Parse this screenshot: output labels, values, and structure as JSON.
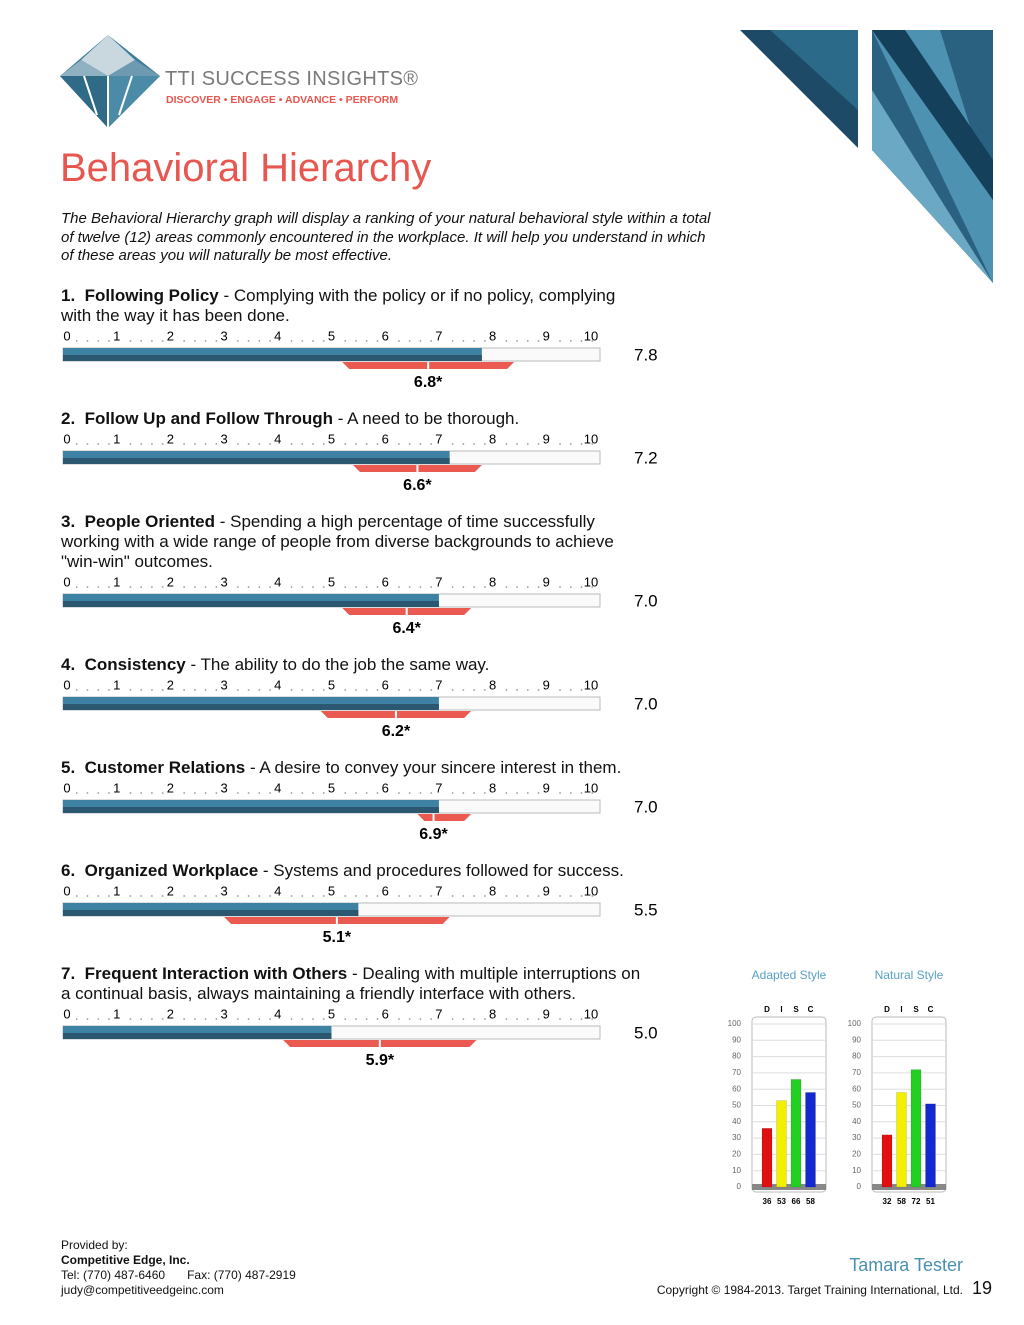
{
  "header": {
    "brand": "TTI SUCCESS INSIGHTS®",
    "tagline": "DISCOVER • ENGAGE • ADVANCE • PERFORM"
  },
  "title": "Behavioral Hierarchy",
  "intro": "The Behavioral Hierarchy graph will display a ranking of your natural behavioral style within a total of twelve (12) areas commonly encountered in the workplace.  It will help you understand in which of these areas you will naturally be most effective.",
  "scale": {
    "xlim": [
      0,
      10
    ],
    "xticks": [
      0,
      1,
      2,
      3,
      4,
      5,
      6,
      7,
      8,
      9,
      10
    ]
  },
  "items": [
    {
      "number": "1.",
      "name": "Following Policy",
      "description": "- Complying with the policy or if no policy, complying with the way it has been done.",
      "score": 7.8,
      "score_label": "7.8",
      "average": 6.8,
      "average_label": "6.8*",
      "range": [
        5.2,
        8.4
      ]
    },
    {
      "number": "2.",
      "name": "Follow Up and Follow Through",
      "description": "- A need to be thorough.",
      "score": 7.2,
      "score_label": "7.2",
      "average": 6.6,
      "average_label": "6.6*",
      "range": [
        5.4,
        7.8
      ]
    },
    {
      "number": "3.",
      "name": "People Oriented",
      "description": "- Spending a high percentage of time successfully working with a wide range of people from diverse backgrounds to achieve \"win-win\" outcomes.",
      "score": 7.0,
      "score_label": "7.0",
      "average": 6.4,
      "average_label": "6.4*",
      "range": [
        5.2,
        7.6
      ]
    },
    {
      "number": "4.",
      "name": "Consistency",
      "description": "- The ability to do the job the same way.",
      "score": 7.0,
      "score_label": "7.0",
      "average": 6.2,
      "average_label": "6.2*",
      "range": [
        4.8,
        7.6
      ]
    },
    {
      "number": "5.",
      "name": "Customer Relations",
      "description": "- A desire to convey your sincere interest in them.",
      "score": 7.0,
      "score_label": "7.0",
      "average": 6.9,
      "average_label": "6.9*",
      "range": [
        6.6,
        7.6
      ]
    },
    {
      "number": "6.",
      "name": "Organized Workplace",
      "description": "- Systems and procedures followed for success.",
      "score": 5.5,
      "score_label": "5.5",
      "average": 5.1,
      "average_label": "5.1*",
      "range": [
        3.0,
        7.2
      ]
    },
    {
      "number": "7.",
      "name": "Frequent Interaction with Others",
      "description": "- Dealing with multiple interruptions on a continual basis, always maintaining a friendly interface with others.",
      "score": 5.0,
      "score_label": "5.0",
      "average": 5.9,
      "average_label": "5.9*",
      "range": [
        4.1,
        7.7
      ]
    }
  ],
  "disc_charts": [
    {
      "type": "bar",
      "title": "Adapted Style",
      "categories": [
        "D",
        "I",
        "S",
        "C"
      ],
      "values": [
        36,
        53,
        66,
        58
      ],
      "colors": [
        "#e01010",
        "#f2f000",
        "#22d022",
        "#1428d0"
      ],
      "ylim": [
        0,
        100
      ],
      "yticks": [
        0,
        10,
        20,
        30,
        40,
        50,
        60,
        70,
        80,
        90,
        100
      ]
    },
    {
      "type": "bar",
      "title": "Natural Style",
      "categories": [
        "D",
        "I",
        "S",
        "C"
      ],
      "values": [
        32,
        58,
        72,
        51
      ],
      "colors": [
        "#e01010",
        "#f2f000",
        "#22d022",
        "#1428d0"
      ],
      "ylim": [
        0,
        100
      ],
      "yticks": [
        0,
        10,
        20,
        30,
        40,
        50,
        60,
        70,
        80,
        90,
        100
      ]
    }
  ],
  "footer": {
    "provided_by": "Provided by:",
    "company": "Competitive Edge, Inc.",
    "tel": "Tel:  (770) 487-6460",
    "fax": "Fax: (770) 487-2919",
    "email": "judy@competitiveedgeinc.com",
    "person": "Tamara Tester",
    "copyright": "Copyright © 1984-2013. Target Training International, Ltd.",
    "page": 19
  }
}
